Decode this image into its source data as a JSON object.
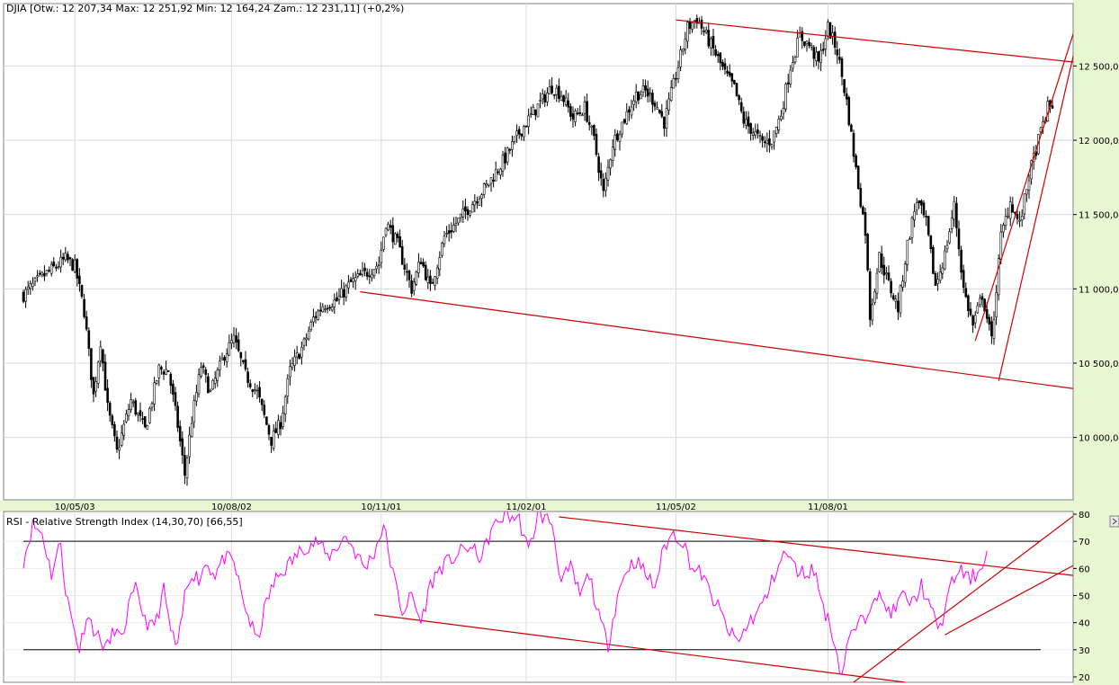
{
  "chart_data": [
    {
      "type": "candlestick",
      "title": "DJIA [Otw.: 12 207,34  Max: 12 251,92  Min: 12 164,24  Zam.: 12 231,11] (+0,2%)",
      "y_ticks": [
        10000,
        10500,
        11000,
        11500,
        12000,
        12500
      ],
      "y_tick_labels": [
        "10 000,00",
        "10 500,00",
        "11 000,00",
        "11 500,00",
        "12 000,00",
        "12 500,00"
      ],
      "ylim": [
        9580,
        12920
      ],
      "x_tick_labels": [
        "10/05/03",
        "10/08/02",
        "10/11/01",
        "11/02/01",
        "11/05/02",
        "11/08/01"
      ],
      "x_tick_index": [
        22,
        89,
        153,
        215,
        279,
        344
      ],
      "n_bars": 420,
      "close_path": [
        [
          0,
          10960
        ],
        [
          8,
          11080
        ],
        [
          18,
          11200
        ],
        [
          22,
          11150
        ],
        [
          26,
          10850
        ],
        [
          30,
          10280
        ],
        [
          33,
          10650
        ],
        [
          36,
          10200
        ],
        [
          40,
          9900
        ],
        [
          46,
          10250
        ],
        [
          52,
          10050
        ],
        [
          58,
          10460
        ],
        [
          62,
          10450
        ],
        [
          66,
          10080
        ],
        [
          69,
          9750
        ],
        [
          72,
          10120
        ],
        [
          76,
          10480
        ],
        [
          80,
          10300
        ],
        [
          86,
          10560
        ],
        [
          90,
          10660
        ],
        [
          95,
          10420
        ],
        [
          100,
          10300
        ],
        [
          106,
          9980
        ],
        [
          110,
          10100
        ],
        [
          114,
          10450
        ],
        [
          120,
          10630
        ],
        [
          124,
          10800
        ],
        [
          128,
          10890
        ],
        [
          134,
          10920
        ],
        [
          140,
          11040
        ],
        [
          146,
          11100
        ],
        [
          152,
          11170
        ],
        [
          155,
          11450
        ],
        [
          160,
          11300
        ],
        [
          166,
          11000
        ],
        [
          170,
          11200
        ],
        [
          174,
          11000
        ],
        [
          180,
          11350
        ],
        [
          186,
          11460
        ],
        [
          192,
          11580
        ],
        [
          198,
          11690
        ],
        [
          206,
          11880
        ],
        [
          212,
          12050
        ],
        [
          220,
          12230
        ],
        [
          226,
          12360
        ],
        [
          230,
          12310
        ],
        [
          235,
          12150
        ],
        [
          240,
          12220
        ],
        [
          244,
          12000
        ],
        [
          248,
          11640
        ],
        [
          252,
          11980
        ],
        [
          258,
          12180
        ],
        [
          262,
          12310
        ],
        [
          266,
          12330
        ],
        [
          270,
          12260
        ],
        [
          274,
          12120
        ],
        [
          280,
          12500
        ],
        [
          284,
          12760
        ],
        [
          288,
          12820
        ],
        [
          292,
          12700
        ],
        [
          296,
          12580
        ],
        [
          300,
          12450
        ],
        [
          304,
          12350
        ],
        [
          308,
          12130
        ],
        [
          312,
          12060
        ],
        [
          316,
          11980
        ],
        [
          320,
          12000
        ],
        [
          324,
          12180
        ],
        [
          328,
          12500
        ],
        [
          332,
          12700
        ],
        [
          336,
          12640
        ],
        [
          340,
          12520
        ],
        [
          344,
          12760
        ],
        [
          348,
          12600
        ],
        [
          352,
          12260
        ],
        [
          356,
          11800
        ],
        [
          360,
          11390
        ],
        [
          362,
          10820
        ],
        [
          366,
          11220
        ],
        [
          370,
          11030
        ],
        [
          374,
          10870
        ],
        [
          378,
          11300
        ],
        [
          382,
          11600
        ],
        [
          386,
          11440
        ],
        [
          390,
          11020
        ],
        [
          394,
          11230
        ],
        [
          398,
          11560
        ],
        [
          402,
          11000
        ],
        [
          406,
          10750
        ],
        [
          410,
          10960
        ],
        [
          414,
          10650
        ],
        [
          418,
          11350
        ],
        [
          422,
          11590
        ],
        [
          426,
          11430
        ],
        [
          430,
          11760
        ],
        [
          434,
          12000
        ],
        [
          438,
          12220
        ],
        [
          440,
          12231
        ]
      ],
      "trendlines": [
        [
          [
            279,
            12810
          ],
          [
            453,
            12520
          ]
        ],
        [
          [
            144,
            10980
          ],
          [
            453,
            10320
          ]
        ],
        [
          [
            407,
            10650
          ],
          [
            453,
            12920
          ]
        ],
        [
          [
            417,
            10380
          ],
          [
            453,
            12850
          ]
        ]
      ]
    },
    {
      "type": "line",
      "title": "RSI - Relative Strength Index (14,30,70) [66,55]",
      "y_ticks": [
        20,
        30,
        40,
        50,
        60,
        70,
        80
      ],
      "ylim": [
        18,
        81
      ],
      "levels": [
        70,
        30
      ],
      "series_color": "#ff00ff",
      "rsi_path": [
        [
          0,
          63
        ],
        [
          4,
          76
        ],
        [
          8,
          73
        ],
        [
          12,
          58
        ],
        [
          16,
          70
        ],
        [
          18,
          52
        ],
        [
          21,
          40
        ],
        [
          24,
          30
        ],
        [
          27,
          43
        ],
        [
          30,
          38
        ],
        [
          33,
          33
        ],
        [
          36,
          31
        ],
        [
          39,
          38
        ],
        [
          42,
          33
        ],
        [
          45,
          46
        ],
        [
          48,
          52
        ],
        [
          51,
          44
        ],
        [
          54,
          38
        ],
        [
          57,
          41
        ],
        [
          60,
          52
        ],
        [
          63,
          37
        ],
        [
          66,
          30
        ],
        [
          69,
          50
        ],
        [
          72,
          59
        ],
        [
          75,
          56
        ],
        [
          78,
          62
        ],
        [
          82,
          58
        ],
        [
          86,
          64
        ],
        [
          90,
          62
        ],
        [
          94,
          48
        ],
        [
          97,
          40
        ],
        [
          100,
          33
        ],
        [
          104,
          48
        ],
        [
          108,
          56
        ],
        [
          112,
          60
        ],
        [
          116,
          64
        ],
        [
          120,
          68
        ],
        [
          126,
          70
        ],
        [
          130,
          64
        ],
        [
          134,
          68
        ],
        [
          138,
          72
        ],
        [
          142,
          66
        ],
        [
          146,
          60
        ],
        [
          150,
          66
        ],
        [
          154,
          76
        ],
        [
          158,
          58
        ],
        [
          162,
          44
        ],
        [
          166,
          50
        ],
        [
          170,
          40
        ],
        [
          174,
          54
        ],
        [
          178,
          60
        ],
        [
          184,
          64
        ],
        [
          190,
          68
        ],
        [
          196,
          64
        ],
        [
          200,
          74
        ],
        [
          206,
          80
        ],
        [
          212,
          78
        ],
        [
          216,
          66
        ],
        [
          220,
          80
        ],
        [
          226,
          77
        ],
        [
          230,
          55
        ],
        [
          234,
          60
        ],
        [
          238,
          50
        ],
        [
          242,
          58
        ],
        [
          246,
          42
        ],
        [
          250,
          32
        ],
        [
          254,
          50
        ],
        [
          258,
          60
        ],
        [
          262,
          63
        ],
        [
          266,
          58
        ],
        [
          270,
          53
        ],
        [
          274,
          68
        ],
        [
          278,
          73
        ],
        [
          282,
          70
        ],
        [
          286,
          60
        ],
        [
          290,
          58
        ],
        [
          294,
          50
        ],
        [
          298,
          44
        ],
        [
          302,
          36
        ],
        [
          306,
          33
        ],
        [
          310,
          40
        ],
        [
          314,
          44
        ],
        [
          318,
          50
        ],
        [
          322,
          60
        ],
        [
          326,
          66
        ],
        [
          330,
          60
        ],
        [
          334,
          58
        ],
        [
          338,
          60
        ],
        [
          342,
          46
        ],
        [
          346,
          36
        ],
        [
          348,
          28
        ],
        [
          350,
          20
        ],
        [
          352,
          32
        ],
        [
          356,
          38
        ],
        [
          360,
          42
        ],
        [
          364,
          52
        ],
        [
          368,
          46
        ],
        [
          372,
          44
        ],
        [
          376,
          50
        ],
        [
          380,
          47
        ],
        [
          384,
          54
        ],
        [
          388,
          44
        ],
        [
          392,
          38
        ],
        [
          396,
          52
        ],
        [
          400,
          60
        ],
        [
          404,
          56
        ],
        [
          408,
          58
        ],
        [
          412,
          66.55
        ]
      ],
      "trendlines": [
        [
          [
            229,
            79
          ],
          [
            453,
            57
          ]
        ],
        [
          [
            150,
            43
          ],
          [
            377,
            18
          ]
        ],
        [
          [
            355,
            18
          ],
          [
            453,
            82
          ]
        ],
        [
          [
            394,
            35.5
          ],
          [
            453,
            63
          ]
        ]
      ]
    }
  ]
}
